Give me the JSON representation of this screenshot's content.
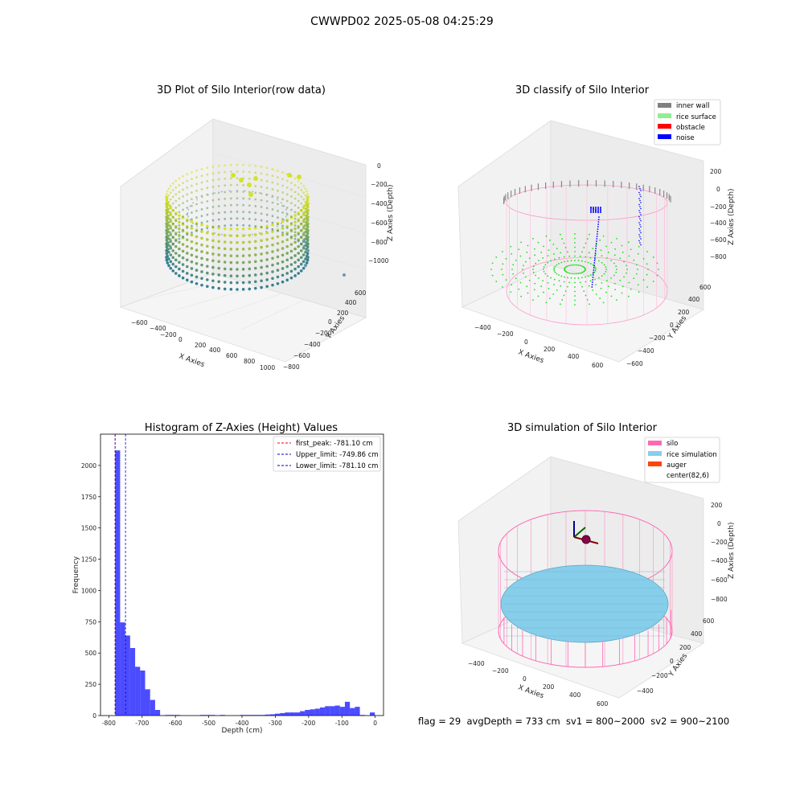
{
  "figure": {
    "title": "CWWPD02 2025-05-08 04:25:29",
    "footer": "flag = 29  avgDepth = 733 cm  sv1 = 800~2000  sv2 = 900~2100"
  },
  "panels": {
    "raw": {
      "title": "3D Plot of Silo Interior(row data)",
      "xlabel": "X Axies",
      "ylabel": "Y Axies",
      "zlabel": "Z Axies (Depth)",
      "xticks": [
        "−600",
        "−400",
        "−200",
        "0",
        "200",
        "400",
        "600",
        "800",
        "1000"
      ],
      "yticks": [
        "−800",
        "−600",
        "−400",
        "−200",
        "0",
        "200",
        "400",
        "600"
      ],
      "zticks": [
        "0",
        "−200",
        "−400",
        "−600",
        "−800",
        "−1000"
      ]
    },
    "classify": {
      "title": "3D classify of Silo Interior",
      "xlabel": "X Axies",
      "ylabel": "Y Axies",
      "zlabel": "Z Axies (Depth)",
      "xticks": [
        "−400",
        "−200",
        "0",
        "200",
        "400",
        "600"
      ],
      "yticks": [
        "−600",
        "−400",
        "−200",
        "0",
        "200",
        "400",
        "600"
      ],
      "zticks": [
        "200",
        "0",
        "−200",
        "−400",
        "−600",
        "−800"
      ],
      "legend": [
        {
          "label": "inner wall",
          "color": "#808080"
        },
        {
          "label": "rice surface",
          "color": "#90ee90"
        },
        {
          "label": "obstacle",
          "color": "#ff0000"
        },
        {
          "label": "noise",
          "color": "#0000ff"
        }
      ]
    },
    "simulation": {
      "title": "3D simulation of Silo Interior",
      "xlabel": "X Axies",
      "ylabel": "Y Axies",
      "zlabel": "Z Axies (Depth)",
      "xticks": [
        "−400",
        "−200",
        "0",
        "200",
        "400",
        "600"
      ],
      "yticks": [
        "−400",
        "−200",
        "0",
        "200",
        "400",
        "600"
      ],
      "zticks": [
        "200",
        "0",
        "−200",
        "−400",
        "−600",
        "−800"
      ],
      "legend": [
        {
          "label": "silo",
          "color": "#ff69b4"
        },
        {
          "label": "rice simulation",
          "color": "#87ceeb"
        },
        {
          "label": "auger",
          "color": "#ff4500"
        },
        {
          "label": "center(82,6)",
          "color": "#ffffff"
        }
      ]
    }
  },
  "chart_data": [
    {
      "type": "bar",
      "title": "Histogram of Z-Axies (Height) Values",
      "xlabel": "Depth (cm)",
      "ylabel": "Frequency",
      "xlim": [
        -825,
        25
      ],
      "ylim": [
        0,
        2250
      ],
      "xticks": [
        -800,
        -700,
        -600,
        -500,
        -400,
        -300,
        -200,
        -100,
        0
      ],
      "yticks": [
        0,
        250,
        500,
        750,
        1000,
        1250,
        1500,
        1750,
        2000
      ],
      "bar_color": "#0000ff",
      "bins": [
        {
          "x0": -781,
          "x1": -766,
          "y": 2120
        },
        {
          "x0": -766,
          "x1": -751,
          "y": 745
        },
        {
          "x0": -751,
          "x1": -736,
          "y": 640
        },
        {
          "x0": -736,
          "x1": -721,
          "y": 540
        },
        {
          "x0": -721,
          "x1": -706,
          "y": 390
        },
        {
          "x0": -706,
          "x1": -691,
          "y": 360
        },
        {
          "x0": -691,
          "x1": -676,
          "y": 210
        },
        {
          "x0": -676,
          "x1": -661,
          "y": 125
        },
        {
          "x0": -661,
          "x1": -646,
          "y": 45
        },
        {
          "x0": -631,
          "x1": -616,
          "y": 5
        },
        {
          "x0": -616,
          "x1": -601,
          "y": 5
        },
        {
          "x0": -601,
          "x1": -586,
          "y": 5
        },
        {
          "x0": -526,
          "x1": -511,
          "y": 5
        },
        {
          "x0": -511,
          "x1": -496,
          "y": 5
        },
        {
          "x0": -496,
          "x1": -481,
          "y": 5
        },
        {
          "x0": -466,
          "x1": -451,
          "y": 5
        },
        {
          "x0": -406,
          "x1": -391,
          "y": 5
        },
        {
          "x0": -391,
          "x1": -376,
          "y": 5
        },
        {
          "x0": -376,
          "x1": -361,
          "y": 5
        },
        {
          "x0": -361,
          "x1": -346,
          "y": 5
        },
        {
          "x0": -346,
          "x1": -331,
          "y": 5
        },
        {
          "x0": -331,
          "x1": -316,
          "y": 8
        },
        {
          "x0": -316,
          "x1": -301,
          "y": 10
        },
        {
          "x0": -301,
          "x1": -286,
          "y": 15
        },
        {
          "x0": -286,
          "x1": -271,
          "y": 20
        },
        {
          "x0": -271,
          "x1": -256,
          "y": 25
        },
        {
          "x0": -256,
          "x1": -241,
          "y": 25
        },
        {
          "x0": -241,
          "x1": -226,
          "y": 25
        },
        {
          "x0": -226,
          "x1": -211,
          "y": 35
        },
        {
          "x0": -211,
          "x1": -196,
          "y": 45
        },
        {
          "x0": -196,
          "x1": -181,
          "y": 50
        },
        {
          "x0": -181,
          "x1": -166,
          "y": 55
        },
        {
          "x0": -166,
          "x1": -151,
          "y": 65
        },
        {
          "x0": -151,
          "x1": -136,
          "y": 75
        },
        {
          "x0": -136,
          "x1": -121,
          "y": 75
        },
        {
          "x0": -121,
          "x1": -106,
          "y": 80
        },
        {
          "x0": -106,
          "x1": -91,
          "y": 70
        },
        {
          "x0": -91,
          "x1": -76,
          "y": 110
        },
        {
          "x0": -76,
          "x1": -61,
          "y": 60
        },
        {
          "x0": -61,
          "x1": -46,
          "y": 70
        },
        {
          "x0": -46,
          "x1": -31,
          "y": 5
        },
        {
          "x0": -16,
          "x1": -1,
          "y": 25
        }
      ],
      "vlines": [
        {
          "label": "first_peak: -781.10 cm",
          "x": -781.1,
          "color": "#ff0000"
        },
        {
          "label": "Upper_limit: -749.86 cm",
          "x": -749.86,
          "color": "#0000cc"
        },
        {
          "label": "Lower_limit: -781.10 cm",
          "x": -781.1,
          "color": "#0000cc"
        }
      ],
      "legend_position": "top-right"
    }
  ]
}
